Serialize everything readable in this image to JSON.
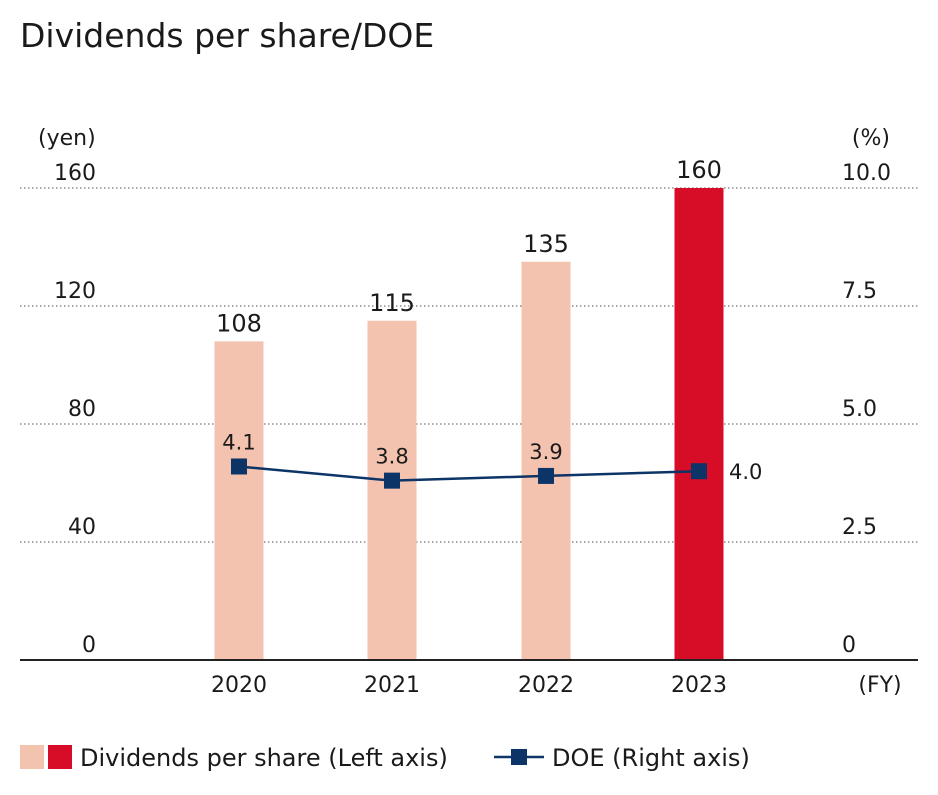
{
  "chart_data": {
    "type": "bar",
    "title": "Dividends per share/DOE",
    "left_unit": "(yen)",
    "right_unit": "(%)",
    "x_unit": "(FY)",
    "categories": [
      "2020",
      "2021",
      "2022",
      "2023"
    ],
    "left_ticks": [
      "0",
      "40",
      "80",
      "120",
      "160"
    ],
    "right_ticks": [
      "0",
      "2.5",
      "5.0",
      "7.5",
      "10.0"
    ],
    "ylim_left": [
      0,
      160
    ],
    "ylim_right": [
      0,
      10
    ],
    "series": [
      {
        "name": "Dividends per share",
        "axis": "left",
        "kind": "bar",
        "values": [
          108,
          115,
          135,
          160
        ],
        "labels": [
          "108",
          "115",
          "135",
          "160"
        ],
        "colors": [
          "#f3c3b0",
          "#f3c3b0",
          "#f3c3b0",
          "#d70c26"
        ]
      },
      {
        "name": "DOE",
        "axis": "right",
        "kind": "line",
        "values": [
          4.1,
          3.8,
          3.9,
          4.0
        ],
        "labels": [
          "4.1",
          "3.8",
          "3.9",
          "4.0"
        ],
        "color": "#0d3466"
      }
    ],
    "legend": {
      "position": "bottom-left",
      "items": [
        "Dividends per share (Left axis)",
        "DOE (Right axis)"
      ],
      "colors": [
        "#f3c3b0",
        "#d70c26",
        "#0d3466"
      ]
    }
  }
}
